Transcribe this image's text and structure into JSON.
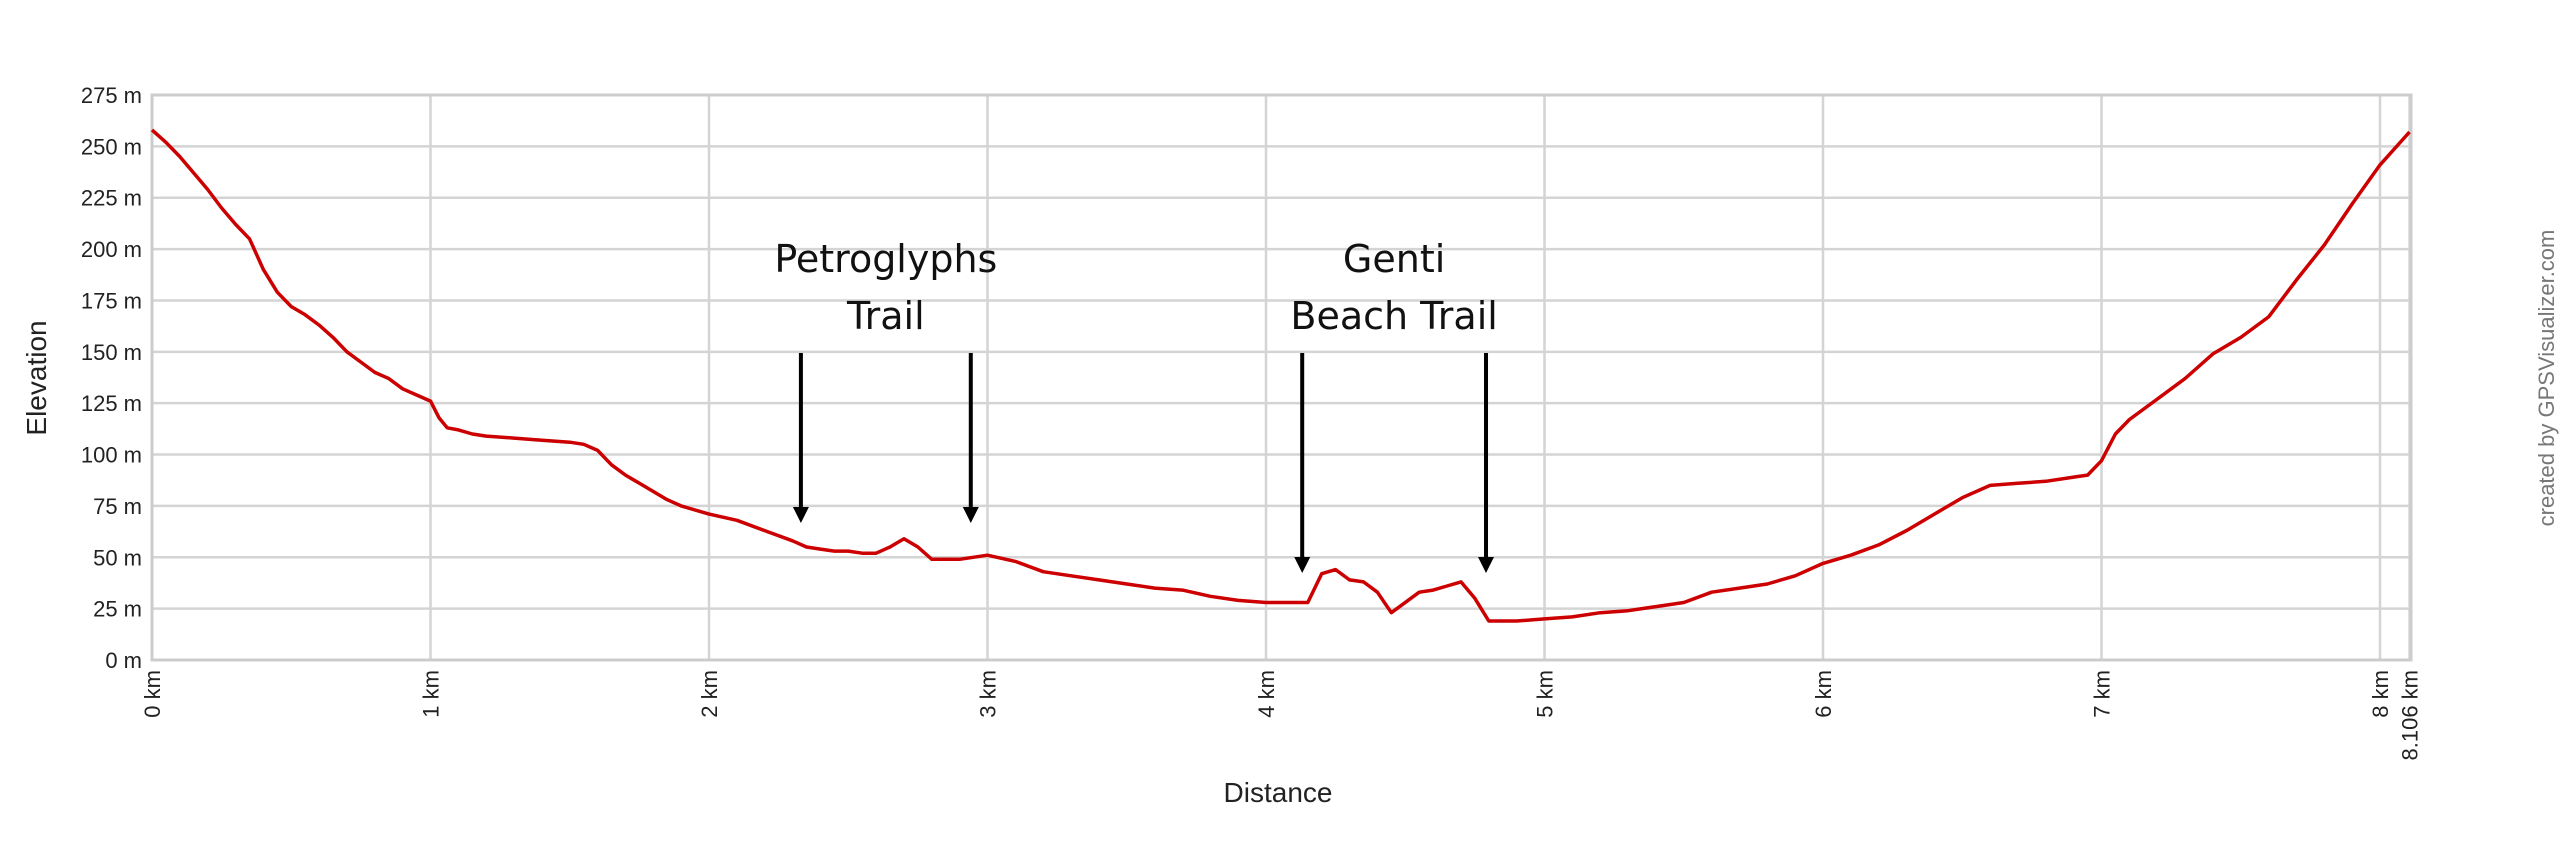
{
  "chart_data": {
    "type": "line",
    "title": "",
    "xlabel": "Distance",
    "ylabel": "Elevation",
    "xlim": [
      0,
      8.106
    ],
    "ylim": [
      0,
      275
    ],
    "grid": true,
    "legend": null,
    "x_unit": "km",
    "y_unit": "m",
    "xtick_labels": [
      "0 km",
      "1 km",
      "2 km",
      "3 km",
      "4 km",
      "5 km",
      "6 km",
      "7 km",
      "8 km",
      "8.106 km"
    ],
    "xtick_values": [
      0,
      1,
      2,
      3,
      4,
      5,
      6,
      7,
      8,
      8.106
    ],
    "ytick_labels": [
      "0 m",
      "25 m",
      "50 m",
      "75 m",
      "100 m",
      "125 m",
      "150 m",
      "175 m",
      "200 m",
      "225 m",
      "250 m",
      "275 m"
    ],
    "ytick_values": [
      0,
      25,
      50,
      75,
      100,
      125,
      150,
      175,
      200,
      225,
      250,
      275
    ],
    "line_color": "#cc0000",
    "series": [
      {
        "name": "Elevation",
        "x": [
          0,
          0.05,
          0.1,
          0.15,
          0.2,
          0.25,
          0.3,
          0.35,
          0.4,
          0.45,
          0.5,
          0.55,
          0.6,
          0.65,
          0.7,
          0.75,
          0.8,
          0.85,
          0.9,
          0.95,
          1.0,
          1.03,
          1.06,
          1.1,
          1.15,
          1.2,
          1.3,
          1.4,
          1.5,
          1.55,
          1.6,
          1.65,
          1.7,
          1.75,
          1.8,
          1.85,
          1.9,
          2.0,
          2.1,
          2.2,
          2.3,
          2.35,
          2.4,
          2.45,
          2.5,
          2.55,
          2.6,
          2.65,
          2.7,
          2.75,
          2.8,
          2.9,
          3.0,
          3.1,
          3.2,
          3.3,
          3.4,
          3.5,
          3.6,
          3.7,
          3.8,
          3.9,
          4.0,
          4.1,
          4.15,
          4.2,
          4.25,
          4.3,
          4.35,
          4.4,
          4.45,
          4.48,
          4.55,
          4.6,
          4.65,
          4.7,
          4.75,
          4.8,
          4.85,
          4.9,
          5.0,
          5.1,
          5.2,
          5.3,
          5.4,
          5.5,
          5.6,
          5.7,
          5.8,
          5.9,
          6.0,
          6.1,
          6.2,
          6.3,
          6.4,
          6.5,
          6.6,
          6.7,
          6.8,
          6.9,
          6.95,
          7.0,
          7.05,
          7.1,
          7.2,
          7.3,
          7.4,
          7.5,
          7.6,
          7.7,
          7.8,
          7.9,
          8.0,
          8.106
        ],
        "values": [
          258,
          252,
          245,
          237,
          229,
          220,
          212,
          205,
          190,
          179,
          172,
          168,
          163,
          157,
          150,
          145,
          140,
          137,
          132,
          129,
          126,
          118,
          113,
          112,
          110,
          109,
          108,
          107,
          106,
          105,
          102,
          95,
          90,
          86,
          82,
          78,
          75,
          71,
          68,
          63,
          58,
          55,
          54,
          53,
          53,
          52,
          52,
          55,
          59,
          55,
          49,
          49,
          51,
          48,
          43,
          41,
          39,
          37,
          35,
          34,
          31,
          29,
          28,
          28,
          28,
          42,
          44,
          39,
          38,
          33,
          23,
          26,
          33,
          34,
          36,
          38,
          30,
          19,
          19,
          19,
          20,
          21,
          23,
          24,
          26,
          28,
          33,
          35,
          37,
          41,
          47,
          51,
          56,
          63,
          71,
          79,
          85,
          86,
          87,
          89,
          90,
          97,
          110,
          117,
          127,
          137,
          149,
          157,
          167,
          185,
          202,
          222,
          241,
          257
        ]
      }
    ],
    "annotations": [
      {
        "lines": [
          "Petroglyphs",
          "Trail"
        ],
        "arrows_at_km": [
          2.33,
          2.94
        ]
      },
      {
        "lines": [
          "Genti",
          "Beach Trail"
        ],
        "arrows_at_km": [
          4.13,
          4.79
        ]
      }
    ],
    "credit": "created by GPSVisualizer.com"
  }
}
